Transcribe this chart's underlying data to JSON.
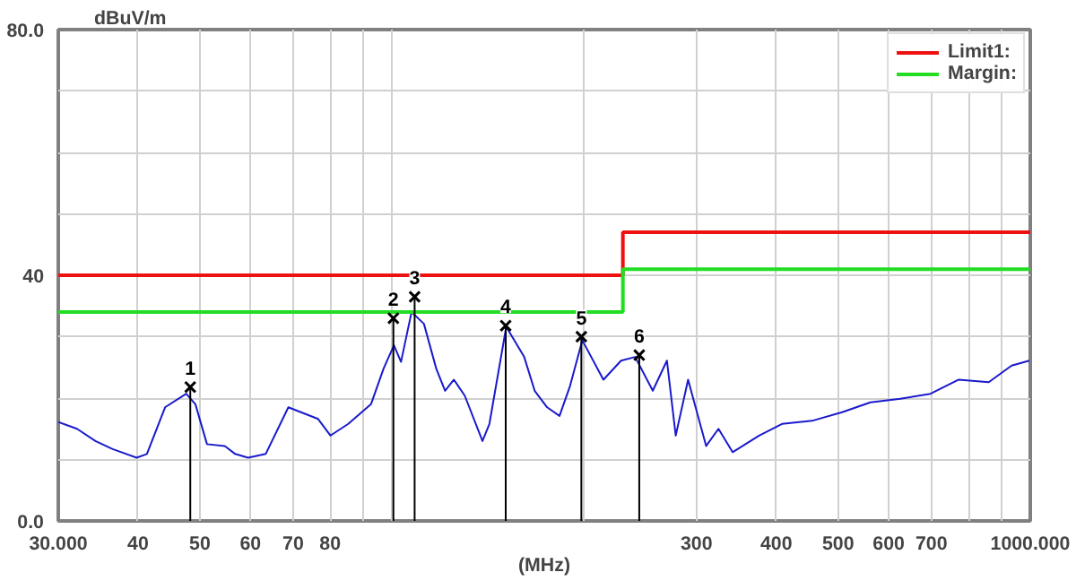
{
  "chart_data": {
    "type": "line",
    "xlabel": "(MHz)",
    "ylabel": "dBuV/m",
    "log": "x",
    "grid": true,
    "legend": "top right",
    "xlim": [
      30,
      1000
    ],
    "ylim": [
      0,
      80
    ],
    "xticks": [
      {
        "value": 30,
        "label": "30.000"
      },
      40,
      50,
      60,
      70,
      80,
      {
        "value": 90,
        "label": null
      },
      {
        "value": 100,
        "label": null
      },
      {
        "value": 200,
        "label": null
      },
      300,
      400,
      500,
      600,
      700,
      {
        "value": 800,
        "label": null
      },
      {
        "value": 900,
        "label": null
      },
      {
        "value": 1000,
        "label": "1000.000"
      }
    ],
    "yticks": [
      {
        "value": 0,
        "label": "0.0"
      },
      {
        "value": 10,
        "label": null
      },
      {
        "value": 20,
        "label": null
      },
      {
        "value": 30,
        "label": null
      },
      40,
      {
        "value": 50,
        "label": null
      },
      {
        "value": 60,
        "label": null
      },
      {
        "value": 70,
        "label": null
      },
      {
        "value": 80,
        "label": "80.0"
      }
    ],
    "series": [
      {
        "color": "#1a1acc",
        "x": [
          30,
          32.1,
          34.3,
          36.5,
          39.8,
          41.3,
          44.1,
          47.6,
          49.2,
          51.3,
          54.7,
          56.8,
          59.5,
          63.4,
          68.8,
          72.0,
          76.6,
          80.1,
          85.4,
          92.7,
          97.0,
          100.7,
          103.3,
          107.3,
          112.2,
          117.3,
          121.1,
          125.0,
          130.0,
          138.6,
          142.1,
          151.0,
          161.1,
          167.3,
          175.0,
          183.0,
          190.1,
          198.7,
          214.4,
          228.5,
          240.4,
          256.2,
          269.6,
          278.3,
          291.0,
          310.6,
          324.7,
          341.7,
          375.9,
          408.3,
          455.0,
          507.2,
          561.8,
          625.9,
          697.6,
          772.5,
          860.9,
          935.0,
          996.5
        ],
        "values": [
          16.1,
          15,
          13,
          11.7,
          10.3,
          10.9,
          18.5,
          20.7,
          19,
          12.5,
          12.2,
          10.9,
          10.3,
          10.9,
          18.5,
          17.7,
          16.6,
          13.9,
          15.8,
          19,
          24.8,
          28.6,
          25.9,
          34,
          32.1,
          24.8,
          21.2,
          23,
          20.4,
          13,
          15.8,
          31.6,
          26.7,
          21.2,
          18.5,
          17.1,
          22,
          29.4,
          23,
          26.1,
          26.7,
          21.2,
          26.1,
          13.9,
          23,
          12.2,
          15,
          11.2,
          13.9,
          15.8,
          16.3,
          17.7,
          19.3,
          19.9,
          20.7,
          23,
          22.6,
          25.3,
          26.1
        ]
      },
      {
        "type": "step",
        "name": "Limit1:",
        "color": "#ee1111",
        "x": [
          30,
          230,
          1000
        ],
        "values": [
          40,
          47,
          47
        ]
      },
      {
        "type": "step",
        "name": "Margin:",
        "color": "#22dd22",
        "x": [
          30,
          230,
          1000
        ],
        "values": [
          34,
          41,
          41
        ]
      },
      {
        "type": "lollipop",
        "color": "#000000",
        "marker": "cross",
        "x": [
          48.3,
          100.5,
          108.5,
          150.7,
          198,
          244
        ],
        "values": [
          21.8,
          33,
          36.5,
          31.8,
          30,
          27
        ]
      }
    ],
    "annotations": [
      {
        "text": "1",
        "x": 48.3,
        "y": 21.8
      },
      {
        "text": "2",
        "x": 100.5,
        "y": 33
      },
      {
        "text": "3",
        "x": 108.5,
        "y": 36.5
      },
      {
        "text": "4",
        "x": 150.7,
        "y": 31.8
      },
      {
        "text": "5",
        "x": 198,
        "y": 30
      },
      {
        "text": "6",
        "x": 244,
        "y": 27
      }
    ]
  }
}
